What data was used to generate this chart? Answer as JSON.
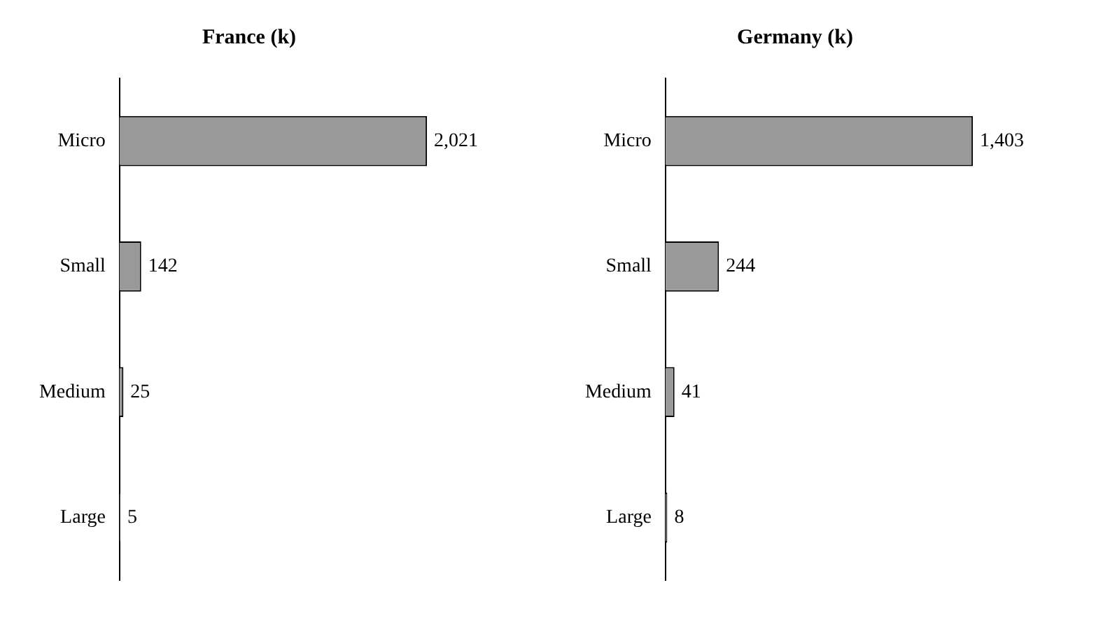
{
  "chart_data": [
    {
      "type": "bar",
      "orientation": "horizontal",
      "title": "France (k)",
      "categories": [
        "Micro",
        "Small",
        "Medium",
        "Large"
      ],
      "values": [
        2021,
        142,
        25,
        5
      ],
      "value_labels": [
        "2,021",
        "142",
        "25",
        "5"
      ],
      "color": "#999999",
      "legend": false
    },
    {
      "type": "bar",
      "orientation": "horizontal",
      "title": "Germany (k)",
      "categories": [
        "Micro",
        "Small",
        "Medium",
        "Large"
      ],
      "values": [
        1403,
        244,
        41,
        8
      ],
      "value_labels": [
        "1,403",
        "244",
        "41",
        "8"
      ],
      "color": "#999999",
      "legend": false
    }
  ]
}
